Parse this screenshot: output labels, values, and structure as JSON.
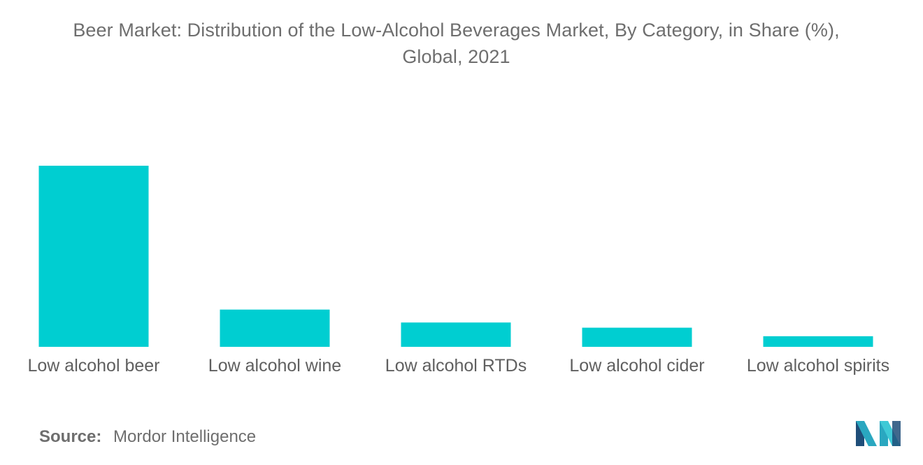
{
  "chart_data": {
    "type": "bar",
    "title_line1": "Beer Market: Distribution of the Low-Alcohol Beverages Market, By Category, in Share (%),",
    "title_line2": "Global, 2021",
    "categories": [
      "Low alcohol beer",
      "Low alcohol wine",
      "Low alcohol RTDs",
      "Low alcohol cider",
      "Low alcohol spirits"
    ],
    "values": [
      70,
      14.4,
      9.4,
      7.4,
      4.1
    ],
    "ylim": [
      0,
      70
    ],
    "grid": false,
    "legend": "none",
    "xlabel": "",
    "ylabel": "",
    "bar_color": "#00ced1"
  },
  "footer": {
    "source_label": "Source:",
    "source_value": "Mordor Intelligence"
  },
  "logo": {
    "icon": "mordor-intelligence-logo",
    "colors": [
      "#1f4e79",
      "#2aa7c0",
      "#3ec9d6"
    ]
  }
}
